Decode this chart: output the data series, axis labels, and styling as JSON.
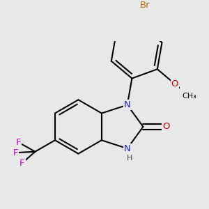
{
  "background_color": "#e8e8e8",
  "bond_color": "#000000",
  "bond_width": 1.5,
  "atom_colors": {
    "N": "#2020cc",
    "O": "#cc0000",
    "Br": "#b87010",
    "F": "#cc00cc",
    "C": "#000000",
    "H": "#444444"
  },
  "font_size": 9.5,
  "xlim": [
    -1.6,
    1.6
  ],
  "ylim": [
    -1.6,
    1.6
  ]
}
